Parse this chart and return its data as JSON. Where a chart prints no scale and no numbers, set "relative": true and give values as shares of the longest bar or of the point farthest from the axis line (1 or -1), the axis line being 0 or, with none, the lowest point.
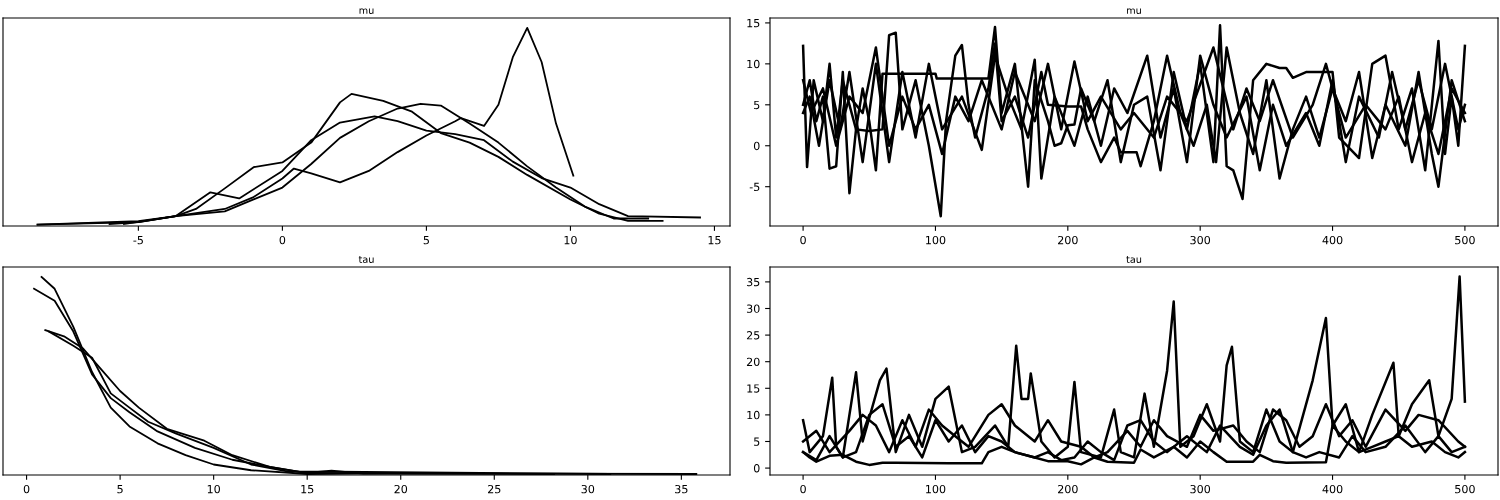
{
  "chart_data": [
    {
      "type": "line",
      "title": "mu",
      "relative": true,
      "tick_labels": "x",
      "xlim": [
        -9.7,
        15.54
      ],
      "xticks": [
        -5,
        0,
        5,
        10,
        15
      ],
      "series": [
        {
          "color": "#000000",
          "x": [
            -6,
            -5,
            -3.7,
            -2,
            -1,
            0,
            0.4,
            1,
            2,
            3,
            4,
            5,
            6,
            6.2,
            7,
            7.5,
            8,
            8.5,
            9,
            9.5,
            10.1
          ],
          "values": [
            0.01,
            0.02,
            0.05,
            0.086,
            0.146,
            0.24,
            0.29,
            0.266,
            0.22,
            0.278,
            0.373,
            0.457,
            0.529,
            0.545,
            0.505,
            0.612,
            0.852,
            1.0,
            0.828,
            0.517,
            0.254
          ]
        },
        {
          "color": "#000000",
          "x": [
            -8.5,
            -5,
            -3.7,
            -3,
            -2,
            -1,
            0,
            1,
            2,
            2.4,
            3.5,
            4.5,
            5.5,
            6.5,
            7.5,
            8.5,
            10,
            11,
            12,
            13.2
          ],
          "values": [
            0.007,
            0.024,
            0.05,
            0.086,
            0.19,
            0.297,
            0.321,
            0.421,
            0.624,
            0.667,
            0.632,
            0.577,
            0.469,
            0.421,
            0.349,
            0.258,
            0.134,
            0.062,
            0.026,
            0.026
          ]
        },
        {
          "color": "#000000",
          "x": [
            -5.5,
            -3.7,
            -2.5,
            -1.5,
            0,
            1,
            2,
            3.2,
            4,
            5,
            6,
            7,
            8,
            9,
            10,
            11,
            12,
            14.5
          ],
          "values": [
            0.01,
            0.05,
            0.17,
            0.139,
            0.278,
            0.433,
            0.522,
            0.553,
            0.529,
            0.481,
            0.464,
            0.433,
            0.325,
            0.242,
            0.194,
            0.11,
            0.05,
            0.043
          ]
        },
        {
          "color": "#000000",
          "x": [
            -8.5,
            -5,
            -3.7,
            -2,
            -1,
            0,
            1,
            2,
            3,
            4,
            4.8,
            5.5,
            6.5,
            7.5,
            8.5,
            9.5,
            10.5,
            11.5,
            12.7
          ],
          "values": [
            0.007,
            0.02,
            0.05,
            0.074,
            0.134,
            0.194,
            0.313,
            0.445,
            0.529,
            0.593,
            0.617,
            0.608,
            0.517,
            0.421,
            0.301,
            0.194,
            0.098,
            0.038,
            0.038
          ]
        }
      ]
    },
    {
      "type": "line",
      "title": "mu",
      "xlim": [
        -25,
        525
      ],
      "xticks": [
        0,
        100,
        200,
        300,
        400,
        500
      ],
      "ylim": [
        -9.8,
        15.6
      ],
      "yticks": [
        -5,
        0,
        5,
        10,
        15
      ],
      "series": [
        {
          "color": "#000000",
          "x": [
            0,
            5,
            10,
            15,
            20,
            25,
            30,
            35,
            40,
            45,
            50,
            55,
            60,
            100,
            101,
            140,
            145,
            150,
            160,
            170,
            175,
            185,
            190,
            195,
            200,
            205,
            210,
            220,
            230,
            240,
            250,
            260,
            270,
            280,
            290,
            300,
            310,
            315,
            320,
            325,
            332,
            340,
            350,
            360,
            365,
            370,
            380,
            400,
            405,
            420,
            430,
            440,
            450,
            460,
            470,
            480,
            485,
            490,
            495,
            500
          ],
          "values": [
            5,
            8,
            3,
            6,
            -2.8,
            -2.5,
            9,
            -5.8,
            2,
            7,
            3,
            -3,
            8.8,
            8.8,
            8.2,
            8.2,
            14.5,
            4,
            10,
            -5,
            8,
            3,
            0,
            0.3,
            2.5,
            2.6,
            7,
            3,
            8,
            -2,
            5,
            6,
            -3,
            9,
            2,
            10,
            -2,
            14.7,
            -2.5,
            -3,
            -6.5,
            8,
            10,
            9.5,
            9.5,
            8.3,
            9,
            9,
            1,
            -1.5,
            10,
            11,
            2,
            7,
            -3,
            12.8,
            -1,
            6,
            0,
            12.2
          ]
        },
        {
          "color": "#000000",
          "x": [
            0,
            3,
            8,
            15,
            20,
            25,
            30,
            40,
            50,
            60,
            65,
            70,
            75,
            85,
            95,
            104,
            108,
            115,
            120,
            125,
            130,
            140,
            145,
            150,
            160,
            170,
            180,
            185,
            200,
            210,
            215,
            225,
            235,
            240,
            252,
            255,
            265,
            275,
            285,
            295,
            305,
            312,
            320,
            330,
            340,
            350,
            360,
            370,
            380,
            390,
            400,
            410,
            420,
            430,
            440,
            455,
            465,
            475,
            480,
            490,
            500
          ],
          "values": [
            12.2,
            -2.6,
            8,
            3,
            10,
            1,
            8,
            2,
            1.8,
            2,
            13.5,
            13.8,
            2,
            8,
            0,
            -8.6,
            3,
            11,
            12.3,
            5,
            1,
            7,
            12.5,
            3,
            6,
            1,
            9,
            5,
            4.8,
            4.8,
            2,
            -2,
            1,
            -0.8,
            -0.8,
            -2.5,
            3,
            11,
            4,
            0,
            5,
            -2,
            12,
            4,
            -1,
            8,
            -4,
            2,
            6,
            1,
            7,
            3,
            9,
            -1.5,
            5,
            0,
            9,
            -1,
            -5,
            8,
            3
          ]
        },
        {
          "color": "#000000",
          "x": [
            0,
            5,
            12,
            20,
            28,
            35,
            45,
            55,
            65,
            75,
            85,
            95,
            105,
            120,
            135,
            145,
            155,
            165,
            175,
            180,
            190,
            205,
            215,
            225,
            235,
            245,
            260,
            270,
            280,
            290,
            300,
            310,
            320,
            335,
            345,
            355,
            365,
            380,
            390,
            400,
            410,
            420,
            435,
            445,
            455,
            465,
            475,
            485,
            495,
            500
          ],
          "values": [
            4,
            6,
            0,
            8,
            2,
            9,
            -2,
            10,
            -2,
            9,
            1,
            10,
            2,
            6,
            -0.5,
            11,
            6,
            2,
            10.5,
            -4,
            6,
            0,
            6,
            0,
            7,
            4,
            11,
            1,
            7,
            -2,
            11,
            5,
            1,
            6,
            -3,
            5,
            0,
            4,
            0,
            8,
            -2,
            6,
            1,
            9,
            2,
            8,
            2,
            10,
            2,
            5
          ]
        },
        {
          "color": "#000000",
          "x": [
            0,
            6,
            15,
            25,
            35,
            45,
            55,
            65,
            75,
            85,
            95,
            105,
            115,
            125,
            135,
            150,
            160,
            175,
            185,
            195,
            205,
            215,
            225,
            240,
            250,
            265,
            275,
            290,
            310,
            325,
            335,
            345,
            355,
            370,
            385,
            395,
            410,
            425,
            440,
            450,
            460,
            470,
            480,
            490,
            500
          ],
          "values": [
            8,
            4,
            7,
            0,
            6,
            4,
            12,
            0,
            6,
            2,
            5,
            -1,
            6,
            3,
            8,
            2,
            9,
            3,
            10,
            2,
            10.3,
            3,
            6,
            2,
            4,
            1,
            6,
            3,
            12,
            2,
            7,
            3,
            8,
            1,
            5,
            10,
            1,
            5,
            2,
            6,
            -2,
            4,
            -1,
            7,
            4
          ]
        }
      ]
    },
    {
      "type": "line",
      "title": "tau",
      "relative": true,
      "tick_labels": "x",
      "xlim": [
        -1.26,
        37.6
      ],
      "xticks": [
        0,
        5,
        10,
        15,
        20,
        25,
        30,
        35
      ],
      "series": [
        {
          "color": "#000000",
          "x": [
            0.8,
            1.5,
            2.5,
            3.5,
            4.5,
            5.5,
            7,
            8.5,
            10,
            12,
            15,
            19.3
          ],
          "values": [
            1.0,
            0.94,
            0.748,
            0.52,
            0.34,
            0.245,
            0.16,
            0.1,
            0.053,
            0.024,
            0.005,
            0.01
          ]
        },
        {
          "color": "#000000",
          "x": [
            0.4,
            1.5,
            2.5,
            3.5,
            4.5,
            5.5,
            7,
            9,
            11,
            13,
            15,
            16.3,
            18,
            28.2
          ],
          "values": [
            0.94,
            0.88,
            0.724,
            0.508,
            0.388,
            0.317,
            0.22,
            0.137,
            0.077,
            0.041,
            0.01,
            0.022,
            0.007,
            0.005
          ]
        },
        {
          "color": "#000000",
          "x": [
            1,
            2,
            3,
            4,
            5,
            6,
            7.5,
            9.5,
            11,
            13,
            15,
            35.8
          ],
          "values": [
            0.731,
            0.7,
            0.64,
            0.532,
            0.424,
            0.34,
            0.233,
            0.173,
            0.1,
            0.041,
            0.01,
            0.005
          ]
        },
        {
          "color": "#000000",
          "x": [
            1.2,
            2.5,
            3.5,
            4.5,
            5.5,
            6.5,
            8,
            10,
            12,
            14,
            16.5,
            31.2
          ],
          "values": [
            0.724,
            0.652,
            0.592,
            0.412,
            0.34,
            0.269,
            0.209,
            0.137,
            0.053,
            0.017,
            0.017,
            0.005
          ]
        }
      ]
    },
    {
      "type": "line",
      "title": "tau",
      "xlim": [
        -25,
        525
      ],
      "xticks": [
        0,
        100,
        200,
        300,
        400,
        500
      ],
      "ylim": [
        -1.3,
        37.8
      ],
      "yticks": [
        0,
        5,
        10,
        15,
        20,
        25,
        30,
        35
      ],
      "series": [
        {
          "color": "#000000",
          "x": [
            0,
            5,
            10,
            20,
            30,
            40,
            50,
            60,
            70,
            110,
            135,
            140,
            150,
            160,
            175,
            185,
            200,
            210,
            220,
            230,
            250,
            255,
            265,
            280,
            290,
            300,
            310,
            320,
            340,
            345,
            355,
            365,
            395,
            400,
            410,
            420,
            430,
            440,
            450,
            460,
            475,
            485,
            495,
            500
          ],
          "values": [
            3,
            2,
            1.2,
            2.3,
            2.5,
            1.2,
            0.6,
            1,
            1,
            0.9,
            0.9,
            3,
            4,
            3,
            2,
            1.3,
            1.3,
            0.7,
            2,
            1.2,
            1,
            3.5,
            2,
            4,
            2,
            5,
            3,
            1.2,
            1.2,
            2.5,
            1.3,
            1,
            1.1,
            8,
            5,
            3,
            4,
            5,
            6,
            4,
            5,
            3,
            2,
            3
          ]
        },
        {
          "color": "#000000",
          "x": [
            0,
            5,
            15,
            22,
            25,
            30,
            40,
            45,
            58,
            63,
            70,
            80,
            90,
            100,
            110,
            120,
            130,
            145,
            155,
            161,
            165,
            170,
            172,
            180,
            190,
            200,
            205,
            210,
            225,
            235,
            240,
            250,
            258,
            265,
            275,
            280,
            285,
            295,
            305,
            315,
            320,
            324,
            330,
            340,
            350,
            360,
            370,
            385,
            395,
            400,
            410,
            420,
            430,
            446,
            450,
            460,
            473,
            480,
            490,
            496,
            500
          ],
          "values": [
            9,
            3,
            6,
            17,
            4,
            2,
            18,
            5,
            16.5,
            18.7,
            3,
            10,
            4,
            13,
            15.3,
            3,
            4,
            8,
            4,
            23,
            13,
            13,
            17.8,
            5,
            2,
            4,
            16.2,
            3,
            2,
            11,
            3,
            2,
            14,
            4,
            18.3,
            31.3,
            4,
            6,
            12,
            5,
            19.3,
            22.8,
            5,
            3,
            11,
            5,
            3,
            16.5,
            28.2,
            8,
            12,
            3,
            10,
            19.8,
            6,
            12,
            16.5,
            6,
            13,
            36,
            12.5
          ]
        },
        {
          "color": "#000000",
          "x": [
            0,
            10,
            20,
            35,
            45,
            55,
            65,
            75,
            85,
            95,
            105,
            115,
            125,
            140,
            150,
            160,
            175,
            185,
            195,
            210,
            220,
            230,
            245,
            255,
            265,
            275,
            290,
            300,
            310,
            325,
            335,
            345,
            355,
            365,
            375,
            385,
            395,
            405,
            415,
            425,
            440,
            455,
            465,
            480,
            495,
            500
          ],
          "values": [
            5,
            7,
            3,
            7,
            10,
            8,
            3,
            9,
            4,
            11,
            8,
            6,
            4,
            10,
            12,
            8,
            5,
            9,
            5,
            4,
            2,
            3,
            7,
            4,
            9,
            6,
            4,
            10,
            7,
            8,
            5,
            3,
            11,
            9,
            4,
            6,
            12,
            6,
            9,
            4,
            11,
            7,
            10,
            9,
            5,
            4
          ]
        },
        {
          "color": "#000000",
          "x": [
            0,
            10,
            20,
            30,
            40,
            50,
            60,
            70,
            80,
            90,
            100,
            110,
            120,
            130,
            140,
            150,
            160,
            175,
            185,
            195,
            205,
            215,
            225,
            235,
            245,
            255,
            265,
            275,
            290,
            305,
            315,
            330,
            340,
            350,
            360,
            370,
            380,
            390,
            405,
            415,
            425,
            440,
            455,
            470,
            480,
            490,
            500
          ],
          "values": [
            3,
            1.5,
            6,
            2,
            3,
            10,
            12,
            4,
            6,
            2,
            9,
            5,
            8,
            3,
            6,
            5,
            3,
            2,
            3,
            1.5,
            2,
            5,
            3,
            1.5,
            8,
            9,
            5,
            3,
            6,
            3,
            8,
            4,
            2.5,
            8,
            11,
            3,
            2,
            3,
            2,
            6,
            3,
            4,
            8,
            3,
            6,
            3,
            4
          ]
        }
      ]
    }
  ]
}
